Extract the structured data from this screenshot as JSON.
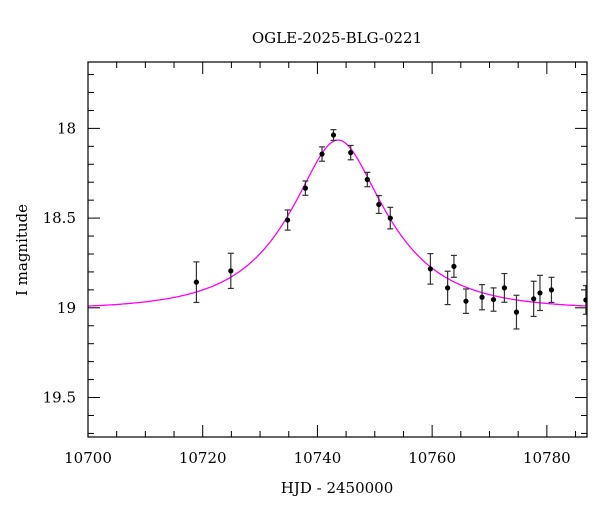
{
  "chart_data": {
    "type": "scatter",
    "title": "OGLE-2025-BLG-0221",
    "xlabel": "HJD - 2450000",
    "ylabel": "I magnitude",
    "xlim": [
      10700,
      10787
    ],
    "ylim": [
      19.72,
      17.63
    ],
    "y_inverted": true,
    "x_ticks": [
      10700,
      10720,
      10740,
      10760,
      10780
    ],
    "x_tick_labels": [
      "10700",
      "10720",
      "10740",
      "10760",
      "10780"
    ],
    "y_ticks": [
      18,
      18.5,
      19,
      19.5
    ],
    "y_tick_labels": [
      "18",
      "18.5",
      "19",
      "19.5"
    ],
    "grid": false,
    "colors": {
      "model": "#ff00ff",
      "points": "#000000"
    },
    "series": [
      {
        "type": "errorbar",
        "points": [
          {
            "x": 10718.9,
            "y": 18.857,
            "err": 0.113
          },
          {
            "x": 10724.9,
            "y": 18.794,
            "err": 0.098
          },
          {
            "x": 10734.8,
            "y": 18.511,
            "err": 0.056
          },
          {
            "x": 10737.9,
            "y": 18.333,
            "err": 0.04
          },
          {
            "x": 10740.8,
            "y": 18.143,
            "err": 0.04
          },
          {
            "x": 10742.8,
            "y": 18.037,
            "err": 0.03
          },
          {
            "x": 10745.8,
            "y": 18.135,
            "err": 0.04
          },
          {
            "x": 10748.7,
            "y": 18.285,
            "err": 0.04
          },
          {
            "x": 10750.7,
            "y": 18.424,
            "err": 0.05
          },
          {
            "x": 10752.7,
            "y": 18.5,
            "err": 0.06
          },
          {
            "x": 10759.7,
            "y": 18.783,
            "err": 0.085
          },
          {
            "x": 10762.7,
            "y": 18.889,
            "err": 0.093
          },
          {
            "x": 10763.8,
            "y": 18.769,
            "err": 0.061
          },
          {
            "x": 10765.9,
            "y": 18.963,
            "err": 0.068
          },
          {
            "x": 10768.7,
            "y": 18.941,
            "err": 0.07
          },
          {
            "x": 10770.7,
            "y": 18.954,
            "err": 0.065
          },
          {
            "x": 10772.6,
            "y": 18.889,
            "err": 0.08
          },
          {
            "x": 10774.7,
            "y": 19.024,
            "err": 0.094
          },
          {
            "x": 10777.7,
            "y": 18.95,
            "err": 0.098
          },
          {
            "x": 10778.8,
            "y": 18.917,
            "err": 0.098
          },
          {
            "x": 10780.8,
            "y": 18.9,
            "err": 0.07
          },
          {
            "x": 10786.8,
            "y": 18.956,
            "err": 0.08
          }
        ]
      },
      {
        "type": "line",
        "model": "point-lens",
        "params": {
          "t0": 10743.6,
          "u0": 0.45,
          "tE": 15,
          "baseline_mag": 19.01
        }
      }
    ]
  }
}
